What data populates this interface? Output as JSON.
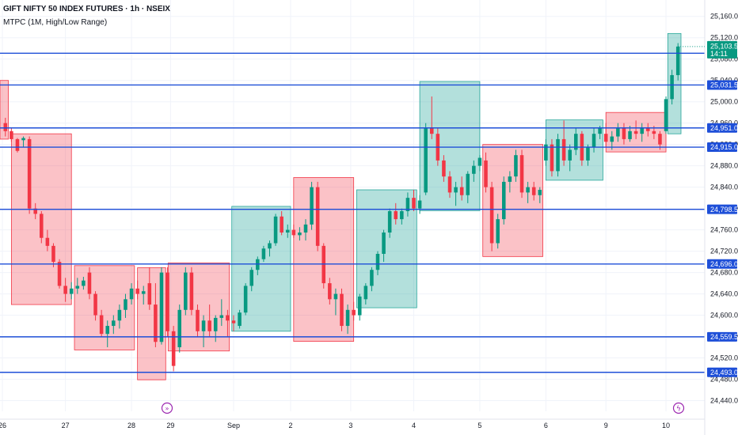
{
  "header": {
    "symbol_line": "GIFT NIFTY 50 INDEX FUTURES · 1h · NSEIX",
    "indicator_line": "MTPC (1M, High/Low Range)"
  },
  "chart_data": {
    "type": "candlestick",
    "ylim": [
      24420,
      25170
    ],
    "yticks": [
      25160,
      25120,
      25080,
      25040,
      25000,
      24960,
      24920,
      24880,
      24840,
      24800,
      24760,
      24720,
      24680,
      24640,
      24600,
      24560,
      24520,
      24480,
      24440
    ],
    "ytick_labels": [
      "25,160.0",
      "25,120.0",
      "25,080.0",
      "25,040.0",
      "25,000.0",
      "24,960.0",
      "24,920.0",
      "24,880.0",
      "24,840.0",
      "24,800.0",
      "24,760.0",
      "24,720.0",
      "24,680.0",
      "24,640.0",
      "24,600.0",
      "24,560.0",
      "24,520.0",
      "24,480.0",
      "24,440.0"
    ],
    "xlabels": [
      "26",
      "27",
      "28",
      "29",
      "Sep",
      "2",
      "3",
      "4",
      "5",
      "6",
      "9",
      "10"
    ],
    "x_range": [
      0,
      113
    ],
    "xlabel_positions": [
      0,
      10.5,
      21.5,
      28,
      38.5,
      48,
      58,
      68.5,
      79.5,
      90.5,
      100.5,
      110.5
    ],
    "levels": [
      {
        "value": 25091.0,
        "label": "25,091.0"
      },
      {
        "value": 25031.5,
        "label": "25,031.5"
      },
      {
        "value": 24951.0,
        "label": "24,951.0"
      },
      {
        "value": 24915.0,
        "label": "24,915.0"
      },
      {
        "value": 24798.5,
        "label": "24,798.5"
      },
      {
        "value": 24696.0,
        "label": "24,696.0"
      },
      {
        "value": 24559.5,
        "label": "24,559.5"
      },
      {
        "value": 24493.0,
        "label": "24,493.0"
      }
    ],
    "last_price": {
      "value": 25103.5,
      "label": "25,103.5",
      "countdown": "14:11"
    },
    "boxes": [
      {
        "x0": -1,
        "x1": 1.0,
        "low": 24930,
        "high": 25040,
        "dir": "down"
      },
      {
        "x0": 1.5,
        "x1": 11.5,
        "low": 24620,
        "high": 24940,
        "dir": "down"
      },
      {
        "x0": 12.0,
        "x1": 22.0,
        "low": 24535,
        "high": 24693,
        "dir": "down"
      },
      {
        "x0": 22.5,
        "x1": 27.2,
        "low": 24479,
        "high": 24689,
        "dir": "down"
      },
      {
        "x0": 27.6,
        "x1": 37.8,
        "low": 24533,
        "high": 24698,
        "dir": "down"
      },
      {
        "x0": 38.2,
        "x1": 48.0,
        "low": 24570,
        "high": 24804,
        "dir": "up"
      },
      {
        "x0": 48.5,
        "x1": 58.5,
        "low": 24551,
        "high": 24858,
        "dir": "down"
      },
      {
        "x0": 59.0,
        "x1": 69.0,
        "low": 24614,
        "high": 24835,
        "dir": "up"
      },
      {
        "x0": 69.5,
        "x1": 79.5,
        "low": 24796,
        "high": 25038,
        "dir": "up"
      },
      {
        "x0": 80.0,
        "x1": 90.0,
        "low": 24710,
        "high": 24920,
        "dir": "down"
      },
      {
        "x0": 90.5,
        "x1": 100.0,
        "low": 24853,
        "high": 24966,
        "dir": "up"
      },
      {
        "x0": 100.5,
        "x1": 110.5,
        "low": 24906,
        "high": 24980,
        "dir": "down"
      },
      {
        "x0": 110.8,
        "x1": 113.0,
        "low": 24940,
        "high": 25128,
        "dir": "up"
      }
    ],
    "candles": [
      [
        24960,
        24970,
        24935,
        24945
      ],
      [
        24945,
        24950,
        24925,
        24930
      ],
      [
        24930,
        24932,
        24905,
        24908
      ],
      [
        24928,
        24935,
        24915,
        24932
      ],
      [
        24930,
        24935,
        24790,
        24800
      ],
      [
        24800,
        24810,
        24780,
        24790
      ],
      [
        24790,
        24795,
        24735,
        24745
      ],
      [
        24745,
        24760,
        24720,
        24730
      ],
      [
        24730,
        24735,
        24690,
        24700
      ],
      [
        24700,
        24705,
        24650,
        24655
      ],
      [
        24655,
        24670,
        24625,
        24640
      ],
      [
        24640,
        24662,
        24630,
        24650
      ],
      [
        24650,
        24670,
        24640,
        24655
      ],
      [
        24655,
        24672,
        24648,
        24665
      ],
      [
        24680,
        24690,
        24630,
        24640
      ],
      [
        24640,
        24645,
        24590,
        24600
      ],
      [
        24600,
        24610,
        24560,
        24565
      ],
      [
        24565,
        24590,
        24540,
        24580
      ],
      [
        24580,
        24600,
        24565,
        24590
      ],
      [
        24590,
        24620,
        24575,
        24610
      ],
      [
        24610,
        24640,
        24595,
        24630
      ],
      [
        24630,
        24660,
        24620,
        24650
      ],
      [
        24650,
        24665,
        24630,
        24640
      ],
      [
        24640,
        24655,
        24620,
        24645
      ],
      [
        24660,
        24690,
        24610,
        24620
      ],
      [
        24620,
        24660,
        24540,
        24550
      ],
      [
        24550,
        24690,
        24545,
        24680
      ],
      [
        24680,
        24690,
        24560,
        24570
      ],
      [
        24570,
        24580,
        24495,
        24505
      ],
      [
        24540,
        24620,
        24530,
        24610
      ],
      [
        24610,
        24690,
        24600,
        24680
      ],
      [
        24680,
        24690,
        24600,
        24610
      ],
      [
        24610,
        24620,
        24560,
        24570
      ],
      [
        24570,
        24600,
        24540,
        24590
      ],
      [
        24590,
        24620,
        24560,
        24570
      ],
      [
        24570,
        24600,
        24550,
        24595
      ],
      [
        24595,
        24630,
        24580,
        24600
      ],
      [
        24600,
        24610,
        24560,
        24590
      ],
      [
        24590,
        24600,
        24570,
        24585
      ],
      [
        24580,
        24610,
        24575,
        24605
      ],
      [
        24605,
        24660,
        24600,
        24655
      ],
      [
        24655,
        24690,
        24645,
        24685
      ],
      [
        24685,
        24710,
        24675,
        24705
      ],
      [
        24705,
        24730,
        24700,
        24725
      ],
      [
        24725,
        24740,
        24710,
        24735
      ],
      [
        24735,
        24790,
        24730,
        24785
      ],
      [
        24785,
        24795,
        24750,
        24755
      ],
      [
        24755,
        24770,
        24745,
        24760
      ],
      [
        24760,
        24770,
        24745,
        24750
      ],
      [
        24750,
        24765,
        24740,
        24755
      ],
      [
        24755,
        24780,
        24740,
        24770
      ],
      [
        24770,
        24850,
        24760,
        24840
      ],
      [
        24840,
        24850,
        24720,
        24730
      ],
      [
        24730,
        24735,
        24650,
        24660
      ],
      [
        24660,
        24670,
        24620,
        24630
      ],
      [
        24630,
        24650,
        24600,
        24640
      ],
      [
        24640,
        24650,
        24570,
        24580
      ],
      [
        24580,
        24620,
        24565,
        24610
      ],
      [
        24610,
        24625,
        24590,
        24600
      ],
      [
        24600,
        24640,
        24590,
        24635
      ],
      [
        24630,
        24660,
        24620,
        24655
      ],
      [
        24655,
        24690,
        24645,
        24685
      ],
      [
        24685,
        24720,
        24675,
        24715
      ],
      [
        24715,
        24760,
        24700,
        24755
      ],
      [
        24755,
        24800,
        24745,
        24795
      ],
      [
        24795,
        24810,
        24770,
        24780
      ],
      [
        24780,
        24800,
        24770,
        24795
      ],
      [
        24795,
        24830,
        24785,
        24820
      ],
      [
        24820,
        24835,
        24795,
        24800
      ],
      [
        24800,
        24825,
        24790,
        24815
      ],
      [
        24830,
        24960,
        24825,
        24950
      ],
      [
        24950,
        25010,
        24930,
        24940
      ],
      [
        24940,
        24950,
        24880,
        24890
      ],
      [
        24890,
        24900,
        24850,
        24860
      ],
      [
        24860,
        24870,
        24820,
        24830
      ],
      [
        24830,
        24850,
        24805,
        24840
      ],
      [
        24840,
        24860,
        24815,
        24825
      ],
      [
        24825,
        24870,
        24810,
        24865
      ],
      [
        24865,
        24890,
        24850,
        24880
      ],
      [
        24880,
        24900,
        24870,
        24895
      ],
      [
        24890,
        24905,
        24830,
        24840
      ],
      [
        24840,
        24850,
        24720,
        24735
      ],
      [
        24735,
        24790,
        24725,
        24780
      ],
      [
        24780,
        24860,
        24770,
        24850
      ],
      [
        24850,
        24870,
        24830,
        24860
      ],
      [
        24860,
        24910,
        24850,
        24900
      ],
      [
        24900,
        24910,
        24820,
        24830
      ],
      [
        24830,
        24850,
        24810,
        24840
      ],
      [
        24840,
        24850,
        24815,
        24825
      ],
      [
        24825,
        24840,
        24810,
        24835
      ],
      [
        24890,
        24930,
        24880,
        24920
      ],
      [
        24920,
        24930,
        24860,
        24870
      ],
      [
        24870,
        24940,
        24860,
        24930
      ],
      [
        24930,
        24965,
        24880,
        24890
      ],
      [
        24890,
        24920,
        24870,
        24910
      ],
      [
        24910,
        24950,
        24900,
        24940
      ],
      [
        24940,
        24945,
        24880,
        24890
      ],
      [
        24890,
        24920,
        24880,
        24915
      ],
      [
        24915,
        24950,
        24905,
        24940
      ],
      [
        24940,
        24955,
        24930,
        24950
      ],
      [
        24940,
        24960,
        24915,
        24925
      ],
      [
        24925,
        24945,
        24910,
        24935
      ],
      [
        24935,
        24960,
        24925,
        24950
      ],
      [
        24950,
        24960,
        24920,
        24930
      ],
      [
        24930,
        24955,
        24925,
        24945
      ],
      [
        24945,
        24965,
        24930,
        24940
      ],
      [
        24940,
        24960,
        24925,
        24950
      ],
      [
        24950,
        24960,
        24935,
        24945
      ],
      [
        24945,
        24955,
        24930,
        24940
      ],
      [
        24940,
        24945,
        24910,
        24920
      ],
      [
        24945,
        25010,
        24940,
        25005
      ],
      [
        25005,
        25060,
        24995,
        25050
      ],
      [
        25050,
        25110,
        25040,
        25103.5
      ]
    ]
  }
}
